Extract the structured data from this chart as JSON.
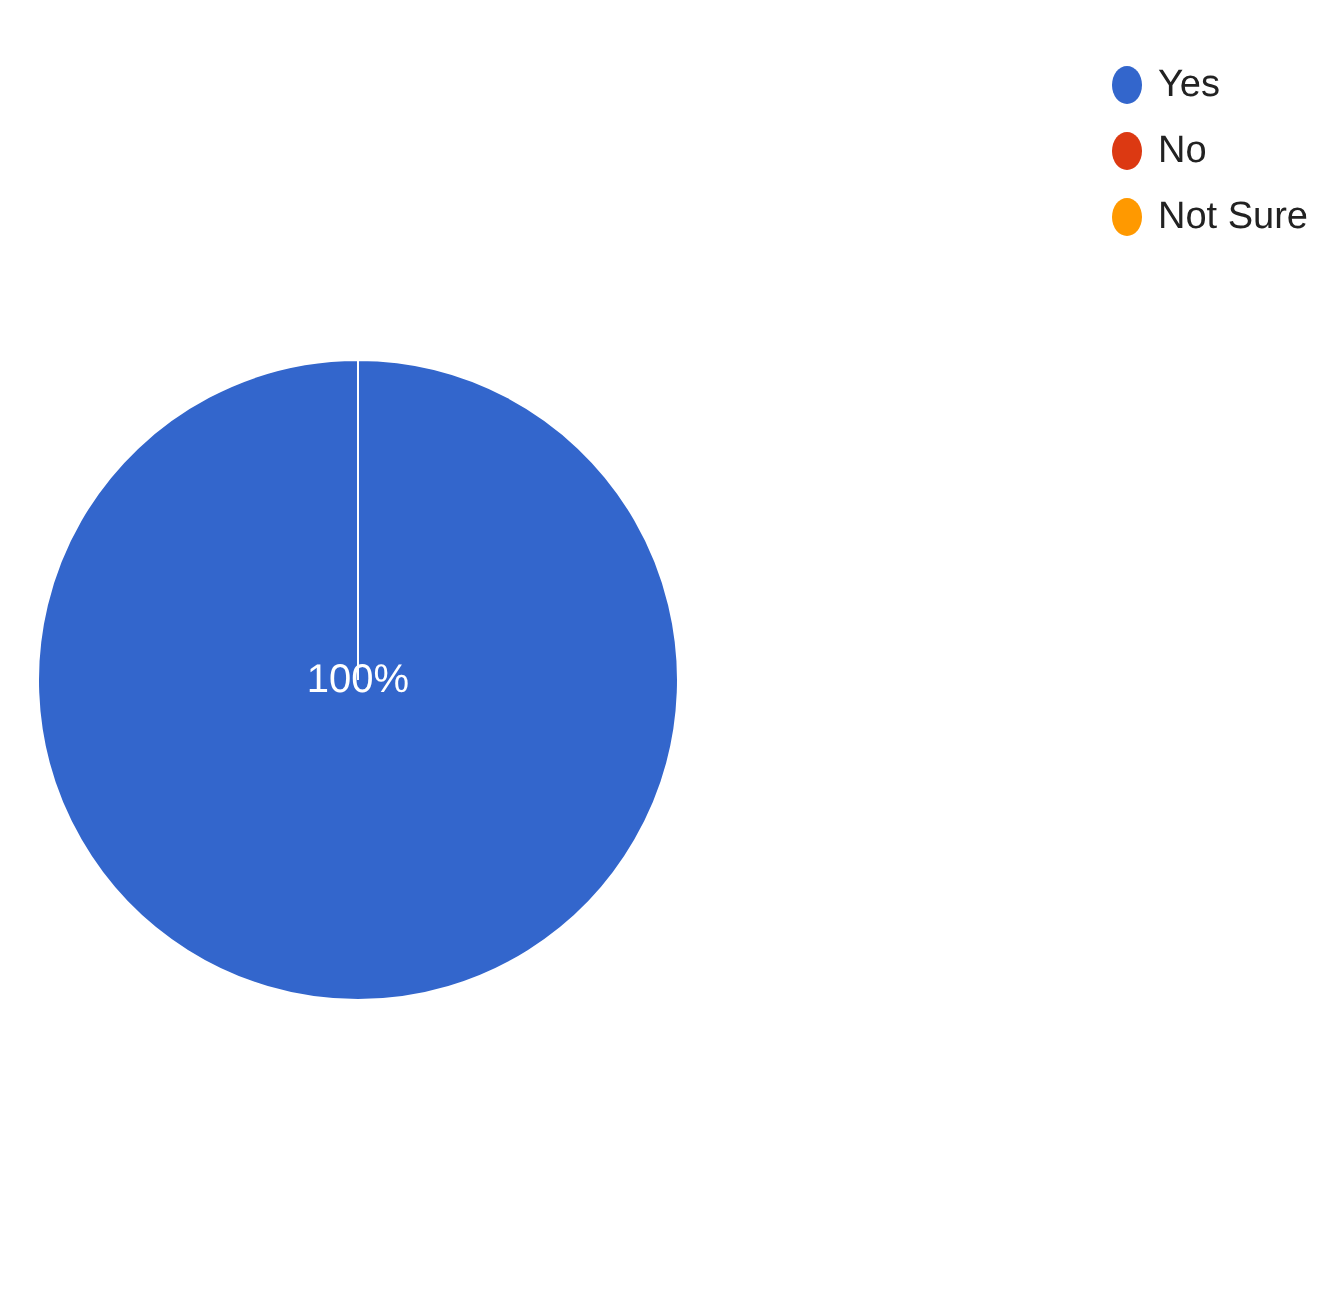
{
  "chart_data": {
    "type": "pie",
    "categories": [
      "Yes",
      "No",
      "Not Sure"
    ],
    "values": [
      100,
      0,
      0
    ],
    "colors": [
      "#3366cc",
      "#dc3912",
      "#ff9900"
    ],
    "value_labels": [
      "100%",
      null,
      null
    ],
    "legend": "top right"
  }
}
